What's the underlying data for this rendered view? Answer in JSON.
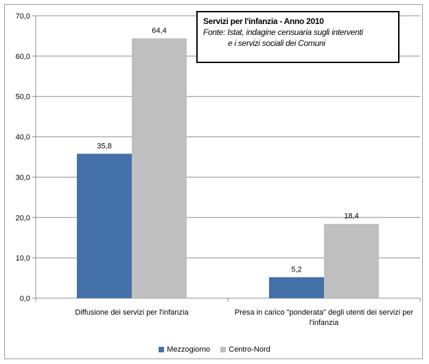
{
  "chart_data": {
    "type": "bar",
    "title": "Servizi per l'infanzia - Anno 2010",
    "source_line1": "Fonte: Istat, indagine censuaria sugli interventi",
    "source_line2": "e i servizi sociali dei Comuni",
    "categories": [
      [
        "Diffusione dei servizi per l'infanzia"
      ],
      [
        "Presa in carico \"ponderata\"  degli utenti dei servizi per",
        "l'infanzia"
      ]
    ],
    "series": [
      {
        "name": "Mezzogiorno",
        "color": "#4470a9",
        "values": [
          35.8,
          5.2
        ],
        "labels": [
          "35,8",
          "5,2"
        ]
      },
      {
        "name": "Centro-Nord",
        "color": "#bfbfbf",
        "values": [
          64.4,
          18.4
        ],
        "labels": [
          "64,4",
          "18,4"
        ]
      }
    ],
    "ylim": [
      0,
      70
    ],
    "yticks": [
      0,
      10,
      20,
      30,
      40,
      50,
      60,
      70
    ],
    "ytick_labels": [
      "0,0",
      "10,0",
      "20,0",
      "30,0",
      "40,0",
      "50,0",
      "60,0",
      "70,0"
    ],
    "grid": true,
    "legend_position": "bottom"
  }
}
